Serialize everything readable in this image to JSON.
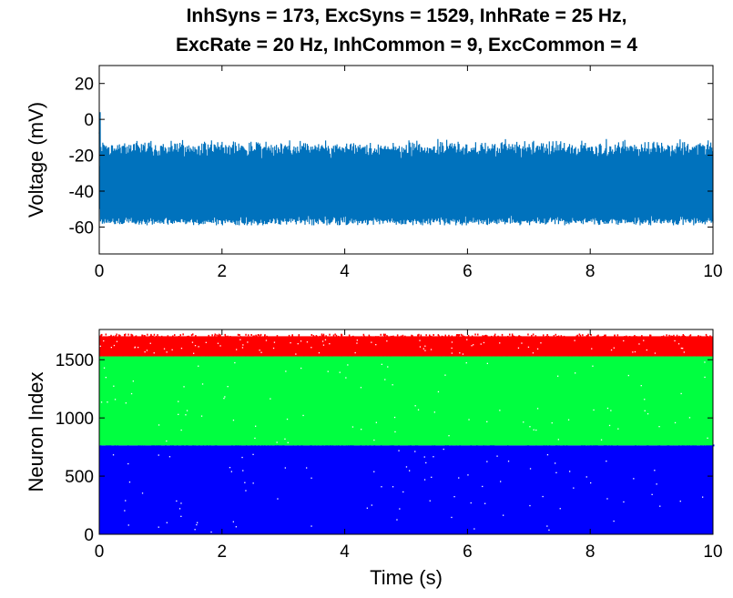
{
  "title_lines": [
    "InhSyns = 173, ExcSyns = 1529, InhRate = 25 Hz,",
    "ExcRate = 20 Hz, InhCommon = 9, ExcCommon = 4"
  ],
  "colors": {
    "voltage_trace": "#0072BD",
    "inh_neurons": "#FF0000",
    "exc_neurons": "#00FF40",
    "common_neurons": "#0000FF"
  },
  "chart_data": [
    {
      "type": "line",
      "panel": "voltage",
      "xlabel": "",
      "ylabel": "Voltage (mV)",
      "xlim": [
        0,
        10
      ],
      "ylim": [
        -75,
        30
      ],
      "x_ticks": [
        0,
        2,
        4,
        6,
        8,
        10
      ],
      "x_tick_labels": [
        "0",
        "2",
        "4",
        "6",
        "8",
        "10"
      ],
      "y_ticks": [
        -60,
        -40,
        -20,
        0,
        20
      ],
      "y_tick_labels": [
        "-60",
        "-40",
        "-20",
        "0",
        "20"
      ],
      "series": [
        {
          "color": "#0072BD",
          "mean": -38,
          "lower_envelope": -57,
          "upper_envelope": -16,
          "initial_peak": -8
        }
      ]
    },
    {
      "type": "scatter",
      "panel": "raster",
      "xlabel": "Time (s)",
      "ylabel": "Neuron Index",
      "xlim": [
        0,
        10
      ],
      "ylim": [
        0,
        1760
      ],
      "x_ticks": [
        0,
        2,
        4,
        6,
        8,
        10
      ],
      "x_tick_labels": [
        "0",
        "2",
        "4",
        "6",
        "8",
        "10"
      ],
      "y_ticks": [
        0,
        500,
        1000,
        1500
      ],
      "y_tick_labels": [
        "0",
        "500",
        "1000",
        "1500"
      ],
      "bands": [
        {
          "color": "#0000FF",
          "y_from": 0,
          "y_to": 764
        },
        {
          "color": "#00FF40",
          "y_from": 764,
          "y_to": 1529
        },
        {
          "color": "#FF0000",
          "y_from": 1529,
          "y_to": 1702
        }
      ]
    }
  ]
}
